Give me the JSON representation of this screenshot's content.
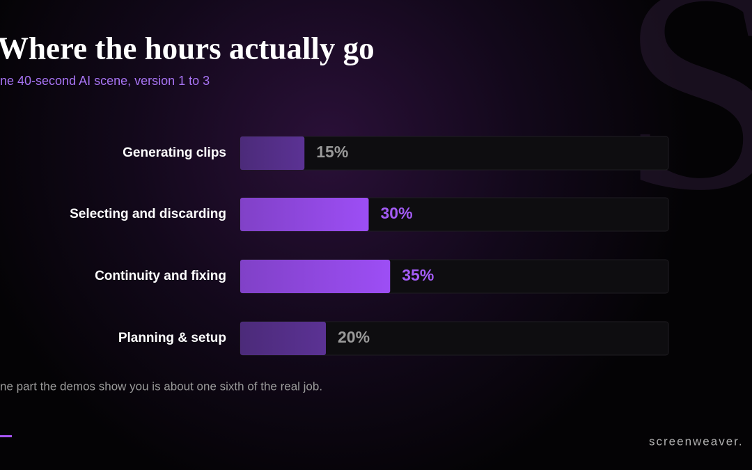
{
  "chart_data": {
    "type": "hbar",
    "title": "Where the hours actually go",
    "subtitle": "ne 40-second AI scene, version 1 to 3",
    "categories": [
      "Generating clips",
      "Selecting and discarding",
      "Continuity and fixing",
      "Planning & setup"
    ],
    "values": [
      15,
      30,
      35,
      20
    ],
    "value_labels": [
      "15%",
      "30%",
      "35%",
      "20%"
    ],
    "colors": [
      "#5b3294",
      "#9d4ef5",
      "#9d4ef5",
      "#5b3294"
    ],
    "label_colors": [
      "#9a9a9a",
      "#a45cf6",
      "#a45cf6",
      "#9a9a9a"
    ],
    "xlim": [
      0,
      100
    ],
    "footnote": "ne part the demos show you is about one sixth of the real job.",
    "brand": "screenweaver.",
    "watermark": "S"
  }
}
